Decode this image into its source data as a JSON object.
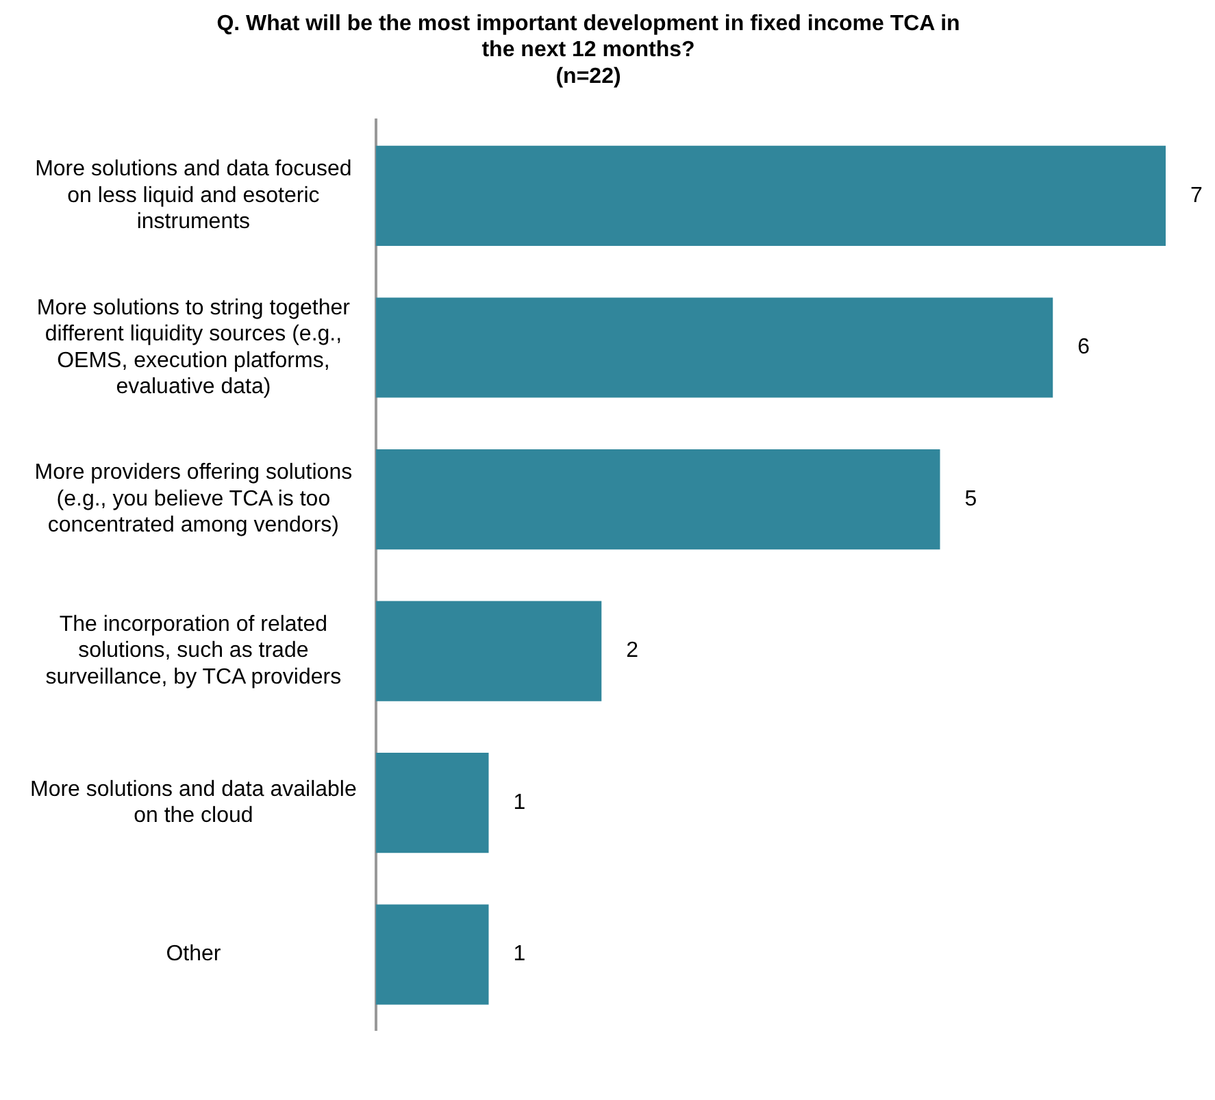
{
  "chart_data": {
    "type": "bar",
    "orientation": "horizontal",
    "title": "Q. What will be the most important development in fixed income TCA in the next 12 months?",
    "subtitle": "(n=22)",
    "categories": [
      "More solutions and data focused on less liquid and esoteric instruments",
      "More solutions to string together different liquidity sources (e.g., OEMS, execution platforms, evaluative data)",
      "More providers offering solutions (e.g., you believe TCA is too concentrated among vendors)",
      "The incorporation of related solutions, such as trade surveillance, by TCA providers",
      "More solutions and data available on the cloud",
      "Other"
    ],
    "values": [
      7,
      6,
      5,
      2,
      1,
      1
    ],
    "color": "#31869b",
    "data_labels": true,
    "grid": false,
    "legend": false,
    "tick_labels": "y"
  }
}
